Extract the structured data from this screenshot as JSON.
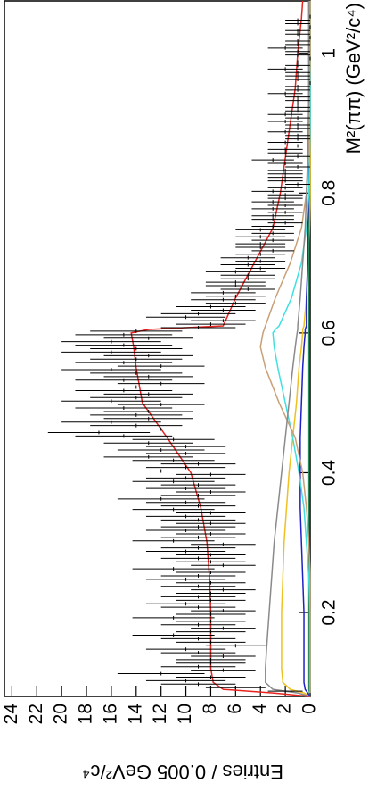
{
  "chart_data": {
    "type": "errorbar",
    "x_label": "M²(ππ) (GeV²/c⁴)",
    "y_label": "Entries / 0.005 GeV²/c⁴",
    "xlim": [
      0.08,
      1.075
    ],
    "ylim": [
      0,
      24.6
    ],
    "xticks": [
      0.2,
      0.4,
      0.6,
      0.8,
      1
    ],
    "yticks": [
      0,
      2,
      4,
      6,
      8,
      10,
      12,
      14,
      16,
      18,
      20,
      22,
      24
    ],
    "color": "#000000",
    "x": [
      0.0825,
      0.0875,
      0.0925,
      0.0975,
      0.1025,
      0.1075,
      0.1125,
      0.1175,
      0.1225,
      0.1275,
      0.1325,
      0.1375,
      0.1425,
      0.1475,
      0.1525,
      0.1575,
      0.1625,
      0.1675,
      0.1725,
      0.1775,
      0.1825,
      0.1875,
      0.1925,
      0.1975,
      0.2025,
      0.2075,
      0.2125,
      0.2175,
      0.2225,
      0.2275,
      0.2325,
      0.2375,
      0.2425,
      0.2475,
      0.2525,
      0.2575,
      0.2625,
      0.2675,
      0.2725,
      0.2775,
      0.2825,
      0.2875,
      0.2925,
      0.2975,
      0.3025,
      0.3075,
      0.3125,
      0.3175,
      0.3225,
      0.3275,
      0.3325,
      0.3375,
      0.3425,
      0.3475,
      0.3525,
      0.3575,
      0.3625,
      0.3675,
      0.3725,
      0.3775,
      0.3825,
      0.3875,
      0.3925,
      0.3975,
      0.4025,
      0.4075,
      0.4125,
      0.4175,
      0.4225,
      0.4275,
      0.4325,
      0.4375,
      0.4425,
      0.4475,
      0.4525,
      0.4575,
      0.4625,
      0.4675,
      0.4725,
      0.4775,
      0.4825,
      0.4875,
      0.4925,
      0.4975,
      0.5025,
      0.5075,
      0.5125,
      0.5175,
      0.5225,
      0.5275,
      0.5325,
      0.5375,
      0.5425,
      0.5475,
      0.5525,
      0.5575,
      0.5625,
      0.5675,
      0.5725,
      0.5775,
      0.5825,
      0.5875,
      0.5925,
      0.5975,
      0.6025,
      0.6075,
      0.6125,
      0.6175,
      0.6225,
      0.6275,
      0.6325,
      0.6375,
      0.6425,
      0.6475,
      0.6525,
      0.6575,
      0.6625,
      0.6675,
      0.6725,
      0.6775,
      0.6825,
      0.6875,
      0.6925,
      0.6975,
      0.7025,
      0.7075,
      0.7125,
      0.7175,
      0.7225,
      0.7275,
      0.7325,
      0.7375,
      0.7425,
      0.7475,
      0.7525,
      0.7575,
      0.7625,
      0.7675,
      0.7725,
      0.7775,
      0.7825,
      0.7875,
      0.7925,
      0.7975,
      0.8025,
      0.8075,
      0.8125,
      0.8175,
      0.8225,
      0.8275,
      0.8325,
      0.8375,
      0.8425,
      0.8475,
      0.8525,
      0.8575,
      0.8625,
      0.8675,
      0.8725,
      0.8775,
      0.8825,
      0.8875,
      0.8925,
      0.8975,
      0.9025,
      0.9075,
      0.9125,
      0.9175,
      0.9225,
      0.9275,
      0.9325,
      0.9375,
      0.9425,
      0.9475,
      0.9525,
      0.9575,
      0.9625,
      0.9675,
      0.9725,
      0.9775,
      0.9825,
      0.9875,
      0.9925,
      0.9975,
      1.0025,
      1.0075,
      1.0125,
      1.0175,
      1.0225,
      1.0275,
      1.0325,
      1.0375,
      1.0425,
      1.0475,
      1.0525
    ],
    "values": [
      0,
      2,
      6,
      9,
      10,
      8,
      12,
      7,
      9,
      8,
      8,
      7,
      9,
      10,
      6,
      8,
      9,
      11,
      8,
      7,
      9,
      8,
      11,
      8,
      7,
      9,
      10,
      8,
      9,
      8,
      7,
      9,
      8,
      10,
      9,
      8,
      11,
      7,
      8,
      9,
      8,
      10,
      9,
      7,
      11,
      9,
      8,
      10,
      9,
      8,
      9,
      10,
      8,
      11,
      9,
      10,
      12,
      9,
      8,
      10,
      9,
      11,
      10,
      8,
      12,
      10,
      9,
      11,
      13,
      10,
      12,
      10,
      13,
      11,
      15,
      17,
      12,
      14,
      16,
      13,
      14,
      13,
      15,
      12,
      16,
      14,
      13,
      15,
      14,
      12,
      15,
      13,
      14,
      16,
      12,
      15,
      14,
      13,
      16,
      14,
      15,
      16,
      13,
      15,
      14,
      9,
      8,
      7,
      10,
      9,
      7,
      8,
      6,
      7,
      6,
      7,
      5,
      6,
      6,
      5,
      5,
      6,
      4,
      5,
      4,
      5,
      4,
      3,
      4,
      4,
      3,
      4,
      3,
      4,
      3,
      2,
      3,
      3,
      2,
      3,
      2,
      3,
      2,
      2,
      3,
      2,
      1,
      2,
      2,
      2,
      2,
      1,
      2,
      3,
      1,
      2,
      2,
      1,
      2,
      1,
      1,
      2,
      1,
      1,
      2,
      1,
      2,
      1,
      1,
      1,
      1,
      1,
      2,
      1,
      1,
      0,
      1,
      1,
      1,
      2,
      1,
      1,
      0,
      1,
      1,
      2,
      1,
      1,
      0,
      1,
      1,
      0,
      1,
      1,
      0
    ],
    "errors": [
      0,
      1.4,
      2.4,
      3,
      3.2,
      2.8,
      3.5,
      2.6,
      3,
      2.8,
      2.8,
      2.6,
      3,
      3.2,
      2.4,
      2.8,
      3,
      3.3,
      2.8,
      2.6,
      3,
      2.8,
      3.3,
      2.8,
      2.6,
      3,
      3.2,
      2.8,
      3,
      2.8,
      2.6,
      3,
      2.8,
      3.2,
      3,
      2.8,
      3.3,
      2.6,
      2.8,
      3,
      2.8,
      3.2,
      3,
      2.6,
      3.3,
      3,
      2.8,
      3.2,
      3,
      2.8,
      3,
      3.2,
      2.8,
      3.3,
      3,
      3.2,
      3.5,
      3,
      2.8,
      3.2,
      3,
      3.3,
      3.2,
      2.8,
      3.5,
      3.2,
      3,
      3.3,
      3.6,
      3.2,
      3.5,
      3.2,
      3.6,
      3.3,
      3.9,
      4.1,
      3.5,
      3.7,
      4,
      3.6,
      3.7,
      3.6,
      3.9,
      3.5,
      4,
      3.7,
      3.6,
      3.9,
      3.7,
      3.5,
      3.9,
      3.6,
      3.7,
      4,
      3.5,
      3.9,
      3.7,
      3.6,
      4,
      3.7,
      3.9,
      4,
      3.6,
      3.9,
      3.7,
      3,
      2.8,
      2.6,
      3.2,
      3,
      2.6,
      2.8,
      2.4,
      2.6,
      2.4,
      2.6,
      2.2,
      2.4,
      2.4,
      2.2,
      2.2,
      2.4,
      2,
      2.2,
      2,
      2.2,
      2,
      1.7,
      2,
      2,
      1.7,
      2,
      1.7,
      2,
      1.7,
      1.4,
      1.7,
      1.7,
      1.4,
      1.7,
      1.4,
      1.7,
      1.4,
      1.4,
      1.7,
      1.4,
      1,
      1.4,
      1.4,
      1.4,
      1.4,
      1,
      1.4,
      1.7,
      1,
      1.4,
      1.4,
      1,
      1.4,
      1,
      1,
      1.4,
      1,
      1,
      1.4,
      1,
      1.4,
      1,
      1,
      1,
      1,
      1,
      1.4,
      1,
      1,
      0,
      1,
      1,
      1,
      1.4,
      1,
      1,
      0,
      1,
      1,
      1.4,
      1,
      1,
      0,
      1,
      1,
      0,
      1,
      1,
      0
    ],
    "fit": {
      "x": [
        0.08,
        0.085,
        0.09,
        0.1,
        0.12,
        0.15,
        0.2,
        0.25,
        0.3,
        0.35,
        0.4,
        0.45,
        0.5,
        0.55,
        0.58,
        0.6,
        0.605,
        0.61,
        0.65,
        0.7,
        0.75,
        0.8,
        0.85,
        0.9,
        0.95,
        1.0,
        1.05,
        1.075
      ],
      "series": [
        {
          "color": "#f0c020",
          "values": [
            0,
            0.5,
            1.6,
            2.2,
            2.3,
            2.3,
            2.3,
            2.2,
            2.1,
            1.9,
            1.7,
            1.4,
            1.1,
            0.9,
            0.7,
            0.6,
            0.6,
            0.5,
            0.3,
            0.15,
            0.05,
            0,
            0,
            0,
            0,
            0,
            0,
            0
          ]
        },
        {
          "color": "#2a8a5a",
          "values": [
            0,
            0.05,
            0.1,
            0.1,
            0.1,
            0.1,
            0.1,
            0.1,
            0.1,
            0.1,
            0.1,
            0.1,
            0.1,
            0.1,
            0.1,
            0.1,
            0.1,
            0.1,
            0.1,
            0.1,
            0.1,
            0.1,
            0.1,
            0.1,
            0.1,
            0.1,
            0.1,
            0.1
          ]
        },
        {
          "color": "#2020c8",
          "values": [
            0,
            0.2,
            0.4,
            0.5,
            0.5,
            0.5,
            0.5,
            0.6,
            0.7,
            0.8,
            0.8,
            0.8,
            0.7,
            0.6,
            0.5,
            0.4,
            0.4,
            0.3,
            0.3,
            0.2,
            0.2,
            0.1,
            0.1,
            0.1,
            0.1,
            0.1,
            0.1,
            0.1
          ]
        },
        {
          "color": "#40e0e0",
          "values": [
            0,
            0,
            0,
            0,
            0,
            0,
            0,
            0.1,
            0.3,
            0.5,
            0.9,
            1.4,
            2,
            2.6,
            2.9,
            3,
            2.8,
            2.5,
            1.5,
            0.7,
            0.3,
            0.1,
            0.05,
            0,
            0,
            0,
            0,
            0
          ]
        },
        {
          "color": "#c8a078",
          "values": [
            0,
            0,
            0,
            0,
            0,
            0,
            0,
            0,
            0.1,
            0.3,
            0.6,
            1.2,
            2.5,
            3.6,
            4,
            3.8,
            3.7,
            3.6,
            2.8,
            1.6,
            0.7,
            0.3,
            0.15,
            0.1,
            0.05,
            0,
            0,
            0
          ]
        },
        {
          "color": "#8a8a8a",
          "values": [
            0,
            1,
            3,
            3.6,
            3.6,
            3.5,
            3.3,
            3.1,
            2.9,
            2.6,
            2.3,
            2,
            1.7,
            1.4,
            1.2,
            1.05,
            1,
            1,
            0.8,
            0.6,
            0.4,
            0.3,
            0.2,
            0.15,
            0.1,
            0.1,
            0.1,
            0.1
          ]
        },
        {
          "color": "#e8231e",
          "values": [
            0,
            3,
            7,
            7.8,
            8,
            8,
            8,
            8.1,
            8.3,
            8.8,
            9.6,
            11.5,
            13.5,
            14,
            14.2,
            14.4,
            13,
            7,
            6,
            4.5,
            3,
            2.4,
            2,
            1.6,
            1.2,
            1,
            0.7,
            0.6
          ]
        }
      ]
    }
  }
}
